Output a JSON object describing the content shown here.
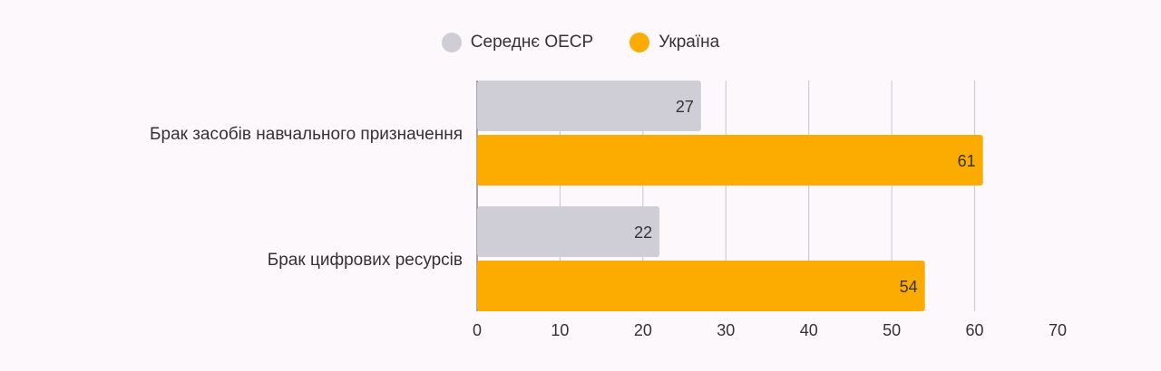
{
  "chart_data": {
    "type": "bar",
    "orientation": "horizontal",
    "categories": [
      "Брак засобів навчального призначення",
      "Брак цифрових ресурсів"
    ],
    "series": [
      {
        "name": "Середнє ОЕСР",
        "values": [
          27,
          22
        ],
        "color": "#cfcdd5"
      },
      {
        "name": "Україна",
        "values": [
          61,
          54
        ],
        "color": "#fcac00"
      }
    ],
    "xlim": [
      0,
      70
    ],
    "x_ticks": [
      "0",
      "10",
      "20",
      "30",
      "40",
      "50",
      "60",
      "70"
    ],
    "grid": true,
    "legend_position": "top-center",
    "data_labels": true
  }
}
